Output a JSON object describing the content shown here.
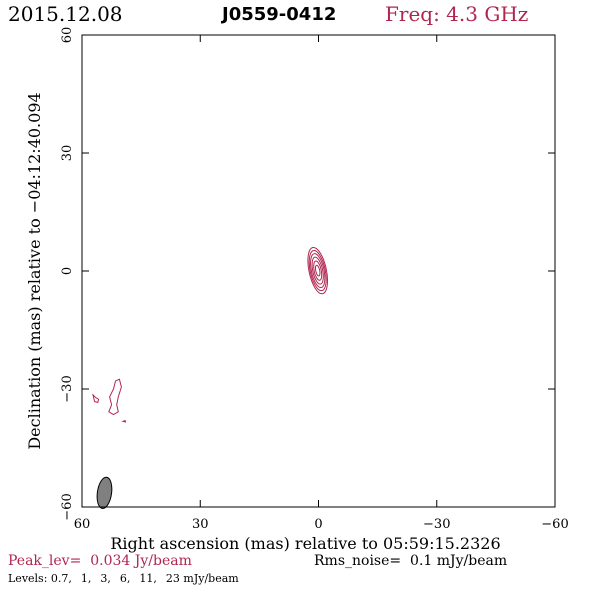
{
  "header": {
    "date": "2015.12.08",
    "source": "J0559-0412",
    "freq": "Freq: 4.3 GHz"
  },
  "colors": {
    "contour": "#b0264f",
    "beam": "#808080",
    "axes": "#000000"
  },
  "chart_data": {
    "type": "contour",
    "xlabel": "Right ascension (mas) relative to 05:59:15.2326",
    "ylabel": "Declination (mas) relative to −04:12:40.094",
    "xlim": [
      60,
      -60
    ],
    "ylim": [
      -60,
      60
    ],
    "xticks": [
      60,
      30,
      0,
      -30,
      -60
    ],
    "xtick_labels": [
      "60",
      "30",
      "0",
      "−30",
      "−60"
    ],
    "yticks": [
      60,
      30,
      0,
      -30,
      -60
    ],
    "ytick_labels": [
      "60",
      "30",
      "0",
      "−30",
      "−60"
    ],
    "core_contours": [
      {
        "x": 0.2,
        "y": 0.1,
        "rx": 2.2,
        "ry": 6.0,
        "angle": -12
      },
      {
        "x": 0.2,
        "y": 0.1,
        "rx": 1.9,
        "ry": 5.2,
        "angle": -12
      },
      {
        "x": 0.2,
        "y": 0.1,
        "rx": 1.6,
        "ry": 4.4,
        "angle": -12
      },
      {
        "x": 0.2,
        "y": 0.1,
        "rx": 1.25,
        "ry": 3.5,
        "angle": -12
      },
      {
        "x": 0.2,
        "y": 0.1,
        "rx": 0.9,
        "ry": 2.5,
        "angle": -12
      },
      {
        "x": 0.2,
        "y": 0.1,
        "rx": 0.5,
        "ry": 1.4,
        "angle": -12
      }
    ],
    "feature_contours": [
      [
        [
          52.5,
          -34.0
        ],
        [
          53.0,
          -32.0
        ],
        [
          52.0,
          -30.0
        ],
        [
          51.5,
          -28.0
        ],
        [
          50.5,
          -27.5
        ],
        [
          50.0,
          -29.5
        ],
        [
          50.8,
          -32.0
        ],
        [
          51.2,
          -34.0
        ],
        [
          50.8,
          -35.8
        ],
        [
          52.0,
          -36.5
        ],
        [
          53.2,
          -35.8
        ],
        [
          52.5,
          -34.0
        ]
      ],
      [
        [
          56.5,
          -32.2
        ],
        [
          57.2,
          -31.5
        ],
        [
          56.8,
          -33.2
        ],
        [
          56.0,
          -33.4
        ],
        [
          55.8,
          -32.6
        ],
        [
          56.5,
          -32.2
        ]
      ],
      [
        [
          49.0,
          -38.0
        ],
        [
          49.6,
          -38.2
        ],
        [
          49.0,
          -38.4
        ],
        [
          49.0,
          -38.0
        ]
      ]
    ],
    "beam": {
      "x": 54.3,
      "y": -56.4,
      "bmaj": 4.0,
      "bmin": 1.8,
      "pa": 8
    },
    "peak_label": "Peak_lev=",
    "peak": "0.034 Jy/beam",
    "rms_label": "Rms_noise=",
    "rms": "0.1 mJy/beam",
    "levels_label": "Levels:",
    "levels": [
      "0.7,",
      "1,",
      "3,",
      "6,",
      "11,",
      "23 mJy/beam"
    ]
  }
}
